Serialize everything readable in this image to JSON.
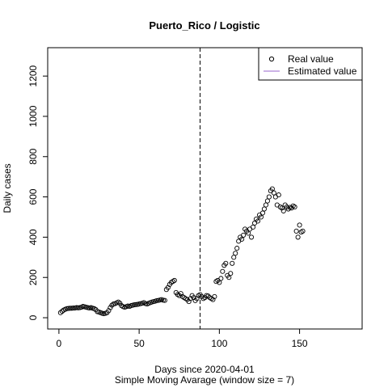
{
  "chart_data": {
    "type": "scatter",
    "title": "Puerto_Rico / Logistic",
    "xlabel": "Days since 2020-04-01",
    "subtitle": "Simple Moving Avarage (window size = 7)",
    "ylabel": "Daily cases",
    "xlim": [
      -7,
      189
    ],
    "ylim": [
      -56,
      1341
    ],
    "xticks": [
      0,
      50,
      100,
      150
    ],
    "yticks": [
      0,
      200,
      400,
      600,
      800,
      1000,
      1200
    ],
    "vline": 88,
    "legend_position": "top-right",
    "series": [
      {
        "name": "Real value",
        "color": "#000000",
        "x": [
          1,
          2,
          3,
          4,
          5,
          6,
          7,
          8,
          9,
          10,
          11,
          12,
          13,
          14,
          15,
          16,
          17,
          18,
          19,
          20,
          21,
          22,
          23,
          24,
          25,
          26,
          27,
          28,
          29,
          30,
          31,
          32,
          33,
          34,
          35,
          36,
          37,
          38,
          39,
          40,
          41,
          42,
          43,
          44,
          45,
          46,
          47,
          48,
          49,
          50,
          51,
          52,
          53,
          54,
          55,
          56,
          57,
          58,
          59,
          60,
          61,
          62,
          63,
          64,
          65,
          66,
          67,
          68,
          69,
          70,
          71,
          72,
          73,
          74,
          75,
          76,
          77,
          78,
          79,
          80,
          81,
          82,
          83,
          84,
          85,
          86,
          87,
          88,
          89,
          90,
          91,
          92,
          93,
          94,
          95,
          96,
          97,
          98,
          99,
          100,
          101,
          102,
          103,
          104,
          105,
          106,
          107,
          108,
          109,
          110,
          111,
          112,
          113,
          114,
          115,
          116,
          117,
          118,
          119,
          120,
          121,
          122,
          123,
          124,
          125,
          126,
          127,
          128,
          129,
          130,
          131,
          132,
          133,
          134,
          135,
          136,
          137,
          138,
          139,
          140,
          141,
          142,
          143,
          144,
          145,
          146,
          147,
          148,
          149,
          150,
          151,
          152
        ],
        "values": [
          25,
          32,
          38,
          42,
          45,
          46,
          47,
          47,
          48,
          48,
          50,
          49,
          50,
          52,
          56,
          54,
          52,
          50,
          48,
          50,
          47,
          45,
          40,
          30,
          28,
          25,
          22,
          20,
          22,
          25,
          35,
          50,
          62,
          68,
          70,
          74,
          78,
          72,
          60,
          55,
          52,
          55,
          58,
          56,
          60,
          62,
          64,
          65,
          66,
          68,
          70,
          72,
          75,
          70,
          68,
          72,
          75,
          78,
          80,
          82,
          85,
          86,
          88,
          90,
          87,
          86,
          140,
          150,
          165,
          175,
          180,
          185,
          125,
          115,
          110,
          120,
          105,
          100,
          95,
          90,
          80,
          95,
          110,
          100,
          85,
          95,
          110,
          115,
          105,
          95,
          100,
          110,
          108,
          100,
          95,
          90,
          105,
          180,
          185,
          175,
          195,
          230,
          260,
          270,
          210,
          200,
          220,
          270,
          300,
          320,
          345,
          380,
          400,
          390,
          410,
          440,
          430,
          420,
          440,
          400,
          450,
          470,
          490,
          480,
          510,
          500,
          520,
          540,
          560,
          580,
          600,
          630,
          640,
          620,
          600,
          560,
          610,
          550,
          545,
          530,
          560,
          550,
          540,
          548,
          545,
          555,
          550,
          430,
          400,
          460,
          425,
          430
        ]
      },
      {
        "name": "Estimated value",
        "color": "#9966cc",
        "x": [],
        "values": []
      }
    ]
  }
}
